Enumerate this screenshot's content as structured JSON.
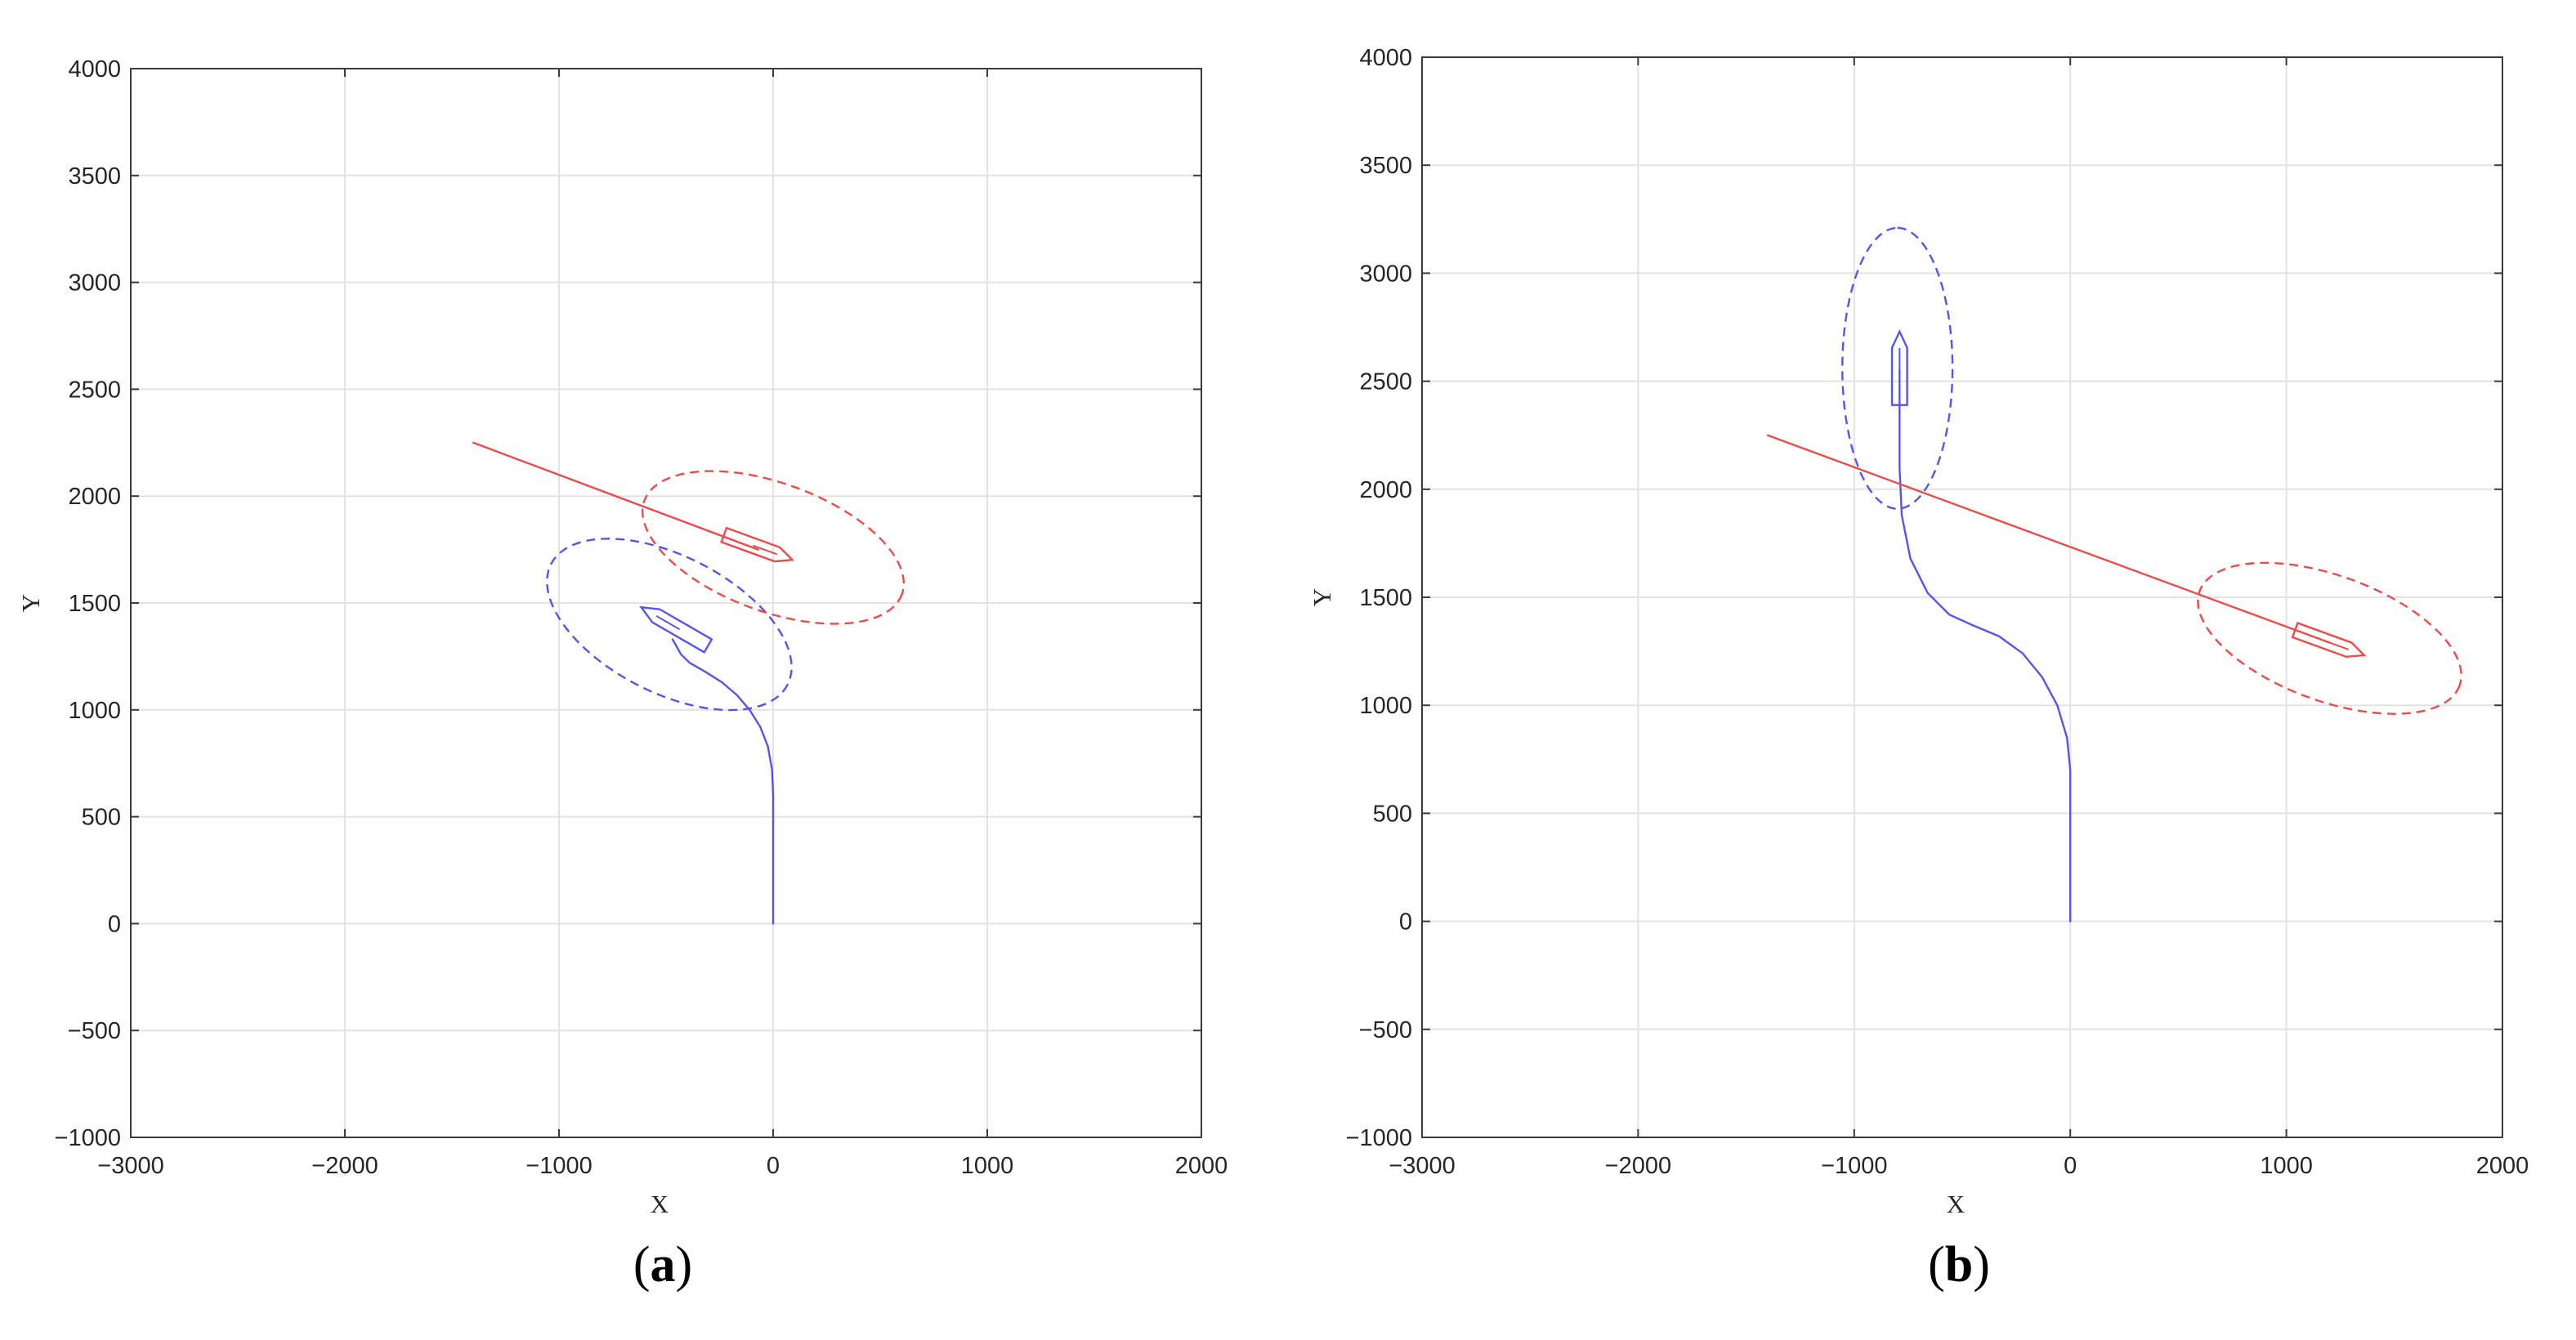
{
  "colors": {
    "own_ship": "#5555ee",
    "target_ship": "#ee4a4a",
    "grid": "#e3e3e3",
    "axes": "#3c3c3c",
    "text": "#262626"
  },
  "chart_data": [
    {
      "type": "line",
      "panel": {
        "open": "(",
        "letter": "a",
        "close": ")"
      },
      "xlabel": "X",
      "ylabel": "Y",
      "xlim": [
        -3000,
        2000
      ],
      "ylim": [
        -1000,
        4000
      ],
      "xticks": [
        -3000,
        -2000,
        -1000,
        0,
        1000,
        2000
      ],
      "yticks": [
        -1000,
        -500,
        0,
        500,
        1000,
        1500,
        2000,
        2500,
        3000,
        3500,
        4000
      ],
      "xtick_labels": [
        "−3000",
        "−2000",
        "−1000",
        "0",
        "1000",
        "2000"
      ],
      "ytick_labels": [
        "−1000",
        "−500",
        "0",
        "500",
        "1000",
        "1500",
        "2000",
        "2500",
        "3000",
        "3500",
        "4000"
      ],
      "grid": true,
      "legend": "none",
      "series": [
        {
          "style": "solid",
          "color_key": "own_ship",
          "points": [
            [
              0,
              0
            ],
            [
              0,
              300
            ],
            [
              0,
              600
            ],
            [
              -5,
              720
            ],
            [
              -25,
              830
            ],
            [
              -60,
              920
            ],
            [
              -110,
              1000
            ],
            [
              -170,
              1070
            ],
            [
              -240,
              1130
            ],
            [
              -320,
              1180
            ],
            [
              -390,
              1220
            ],
            [
              -430,
              1260
            ],
            [
              -470,
              1330
            ]
          ]
        },
        {
          "style": "solid",
          "color_key": "target_ship",
          "points": [
            [
              -1400,
              2250
            ],
            [
              -70,
              1750
            ]
          ]
        },
        {
          "style": "dashed",
          "shape": "ellipse",
          "color_key": "own_ship",
          "center": [
            -485,
            1400
          ],
          "semi_axes": [
            620,
            320
          ],
          "rotation_deg": -27
        },
        {
          "style": "dashed",
          "shape": "ellipse",
          "color_key": "target_ship",
          "center": [
            0,
            1760
          ],
          "semi_axes": [
            640,
            300
          ],
          "rotation_deg": -20
        },
        {
          "style": "solid",
          "shape": "ship",
          "color_key": "own_ship",
          "center": [
            -460,
            1390
          ],
          "heading_deg": 150,
          "length": 360,
          "beam": 70
        },
        {
          "style": "solid",
          "shape": "ship",
          "color_key": "target_ship",
          "center": [
            -70,
            1760
          ],
          "heading_deg": -20,
          "length": 340,
          "beam": 70
        }
      ]
    },
    {
      "type": "line",
      "panel": {
        "open": "(",
        "letter": "b",
        "close": ")"
      },
      "xlabel": "X",
      "ylabel": "Y",
      "xlim": [
        -3000,
        2000
      ],
      "ylim": [
        -1000,
        4000
      ],
      "xticks": [
        -3000,
        -2000,
        -1000,
        0,
        1000,
        2000
      ],
      "yticks": [
        -1000,
        -500,
        0,
        500,
        1000,
        1500,
        2000,
        2500,
        3000,
        3500,
        4000
      ],
      "xtick_labels": [
        "−3000",
        "−2000",
        "−1000",
        "0",
        "1000",
        "2000"
      ],
      "ytick_labels": [
        "−1000",
        "−500",
        "0",
        "500",
        "1000",
        "1500",
        "2000",
        "2500",
        "3000",
        "3500",
        "4000"
      ],
      "grid": true,
      "legend": "none",
      "series": [
        {
          "style": "solid",
          "color_key": "own_ship",
          "points": [
            [
              0,
              0
            ],
            [
              0,
              300
            ],
            [
              0,
              700
            ],
            [
              -15,
              850
            ],
            [
              -60,
              1000
            ],
            [
              -130,
              1130
            ],
            [
              -220,
              1240
            ],
            [
              -330,
              1320
            ],
            [
              -450,
              1370
            ],
            [
              -560,
              1420
            ],
            [
              -660,
              1520
            ],
            [
              -740,
              1680
            ],
            [
              -780,
              1880
            ],
            [
              -790,
              2100
            ],
            [
              -790,
              2300
            ],
            [
              -790,
              2550
            ]
          ]
        },
        {
          "style": "solid",
          "color_key": "target_ship",
          "points": [
            [
              -1400,
              2250
            ],
            [
              1200,
              1290
            ]
          ]
        },
        {
          "style": "dashed",
          "shape": "ellipse",
          "color_key": "own_ship",
          "center": [
            -800,
            2560
          ],
          "semi_axes": [
            650,
            255
          ],
          "rotation_deg": 90
        },
        {
          "style": "dashed",
          "shape": "ellipse",
          "color_key": "target_ship",
          "center": [
            1200,
            1310
          ],
          "semi_axes": [
            640,
            290
          ],
          "rotation_deg": -20
        },
        {
          "style": "solid",
          "shape": "ship",
          "color_key": "own_ship",
          "center": [
            -790,
            2560
          ],
          "heading_deg": 90,
          "length": 340,
          "beam": 70
        },
        {
          "style": "solid",
          "shape": "ship",
          "color_key": "target_ship",
          "center": [
            1200,
            1290
          ],
          "heading_deg": -20,
          "length": 340,
          "beam": 70
        }
      ]
    }
  ]
}
